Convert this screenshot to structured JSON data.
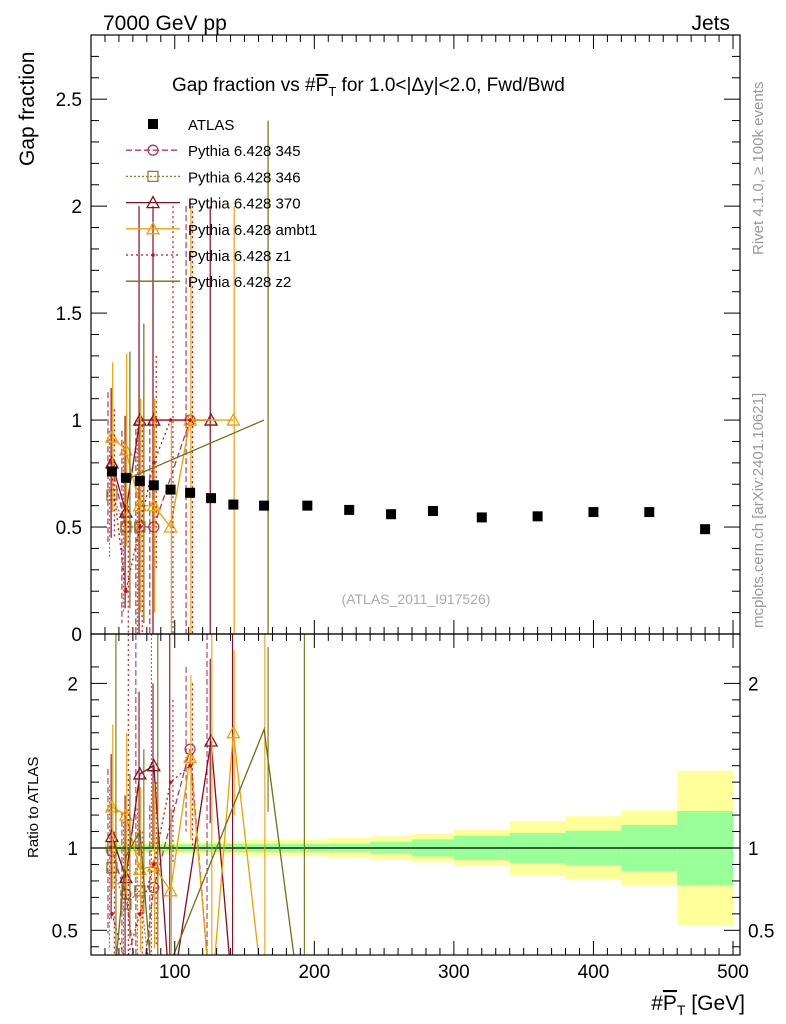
{
  "header": {
    "left": "7000 GeV pp",
    "right": "Jets"
  },
  "side": {
    "rivet": "Rivet 4.1.0, ≥ 100k events",
    "mcplots": "mcplots.cern.ch [arXiv:2401.10621]"
  },
  "chart_data": {
    "type": "scatter",
    "title": "Gap fraction vs #P̅T for 1.0<|Δy|<2.0, Fwd/Bwd",
    "title_parts": {
      "pre": "Gap fraction vs #",
      "p": "P",
      "t": "T",
      "post": " for 1.0<|Δy|<2.0, Fwd/Bwd"
    },
    "xlabel": {
      "pre": "#",
      "p": "P",
      "t": "T",
      "post": " [GeV]"
    },
    "ylabel": "Gap fraction",
    "ratio_ylabel": "Ratio to ATLAS",
    "watermark": "(ATLAS_2011_I917526)",
    "xlim": [
      40,
      505
    ],
    "ylim": [
      0,
      2.8
    ],
    "ratio_ylim": [
      0.35,
      2.3
    ],
    "x_ticks": [
      100,
      200,
      300,
      400,
      500
    ],
    "y_ticks": [
      0,
      0.5,
      1,
      1.5,
      2,
      2.5
    ],
    "ratio_ticks": [
      0.5,
      1,
      2
    ],
    "data": {
      "name": "ATLAS",
      "x": [
        55,
        65,
        75,
        85,
        97,
        111,
        126,
        142,
        164,
        195,
        225,
        255,
        285,
        320,
        360,
        400,
        440,
        480
      ],
      "y": [
        0.76,
        0.73,
        0.715,
        0.695,
        0.675,
        0.66,
        0.635,
        0.605,
        0.6,
        0.6,
        0.58,
        0.56,
        0.575,
        0.545,
        0.55,
        0.57,
        0.57,
        0.49
      ],
      "band_edges": [
        50,
        60,
        70,
        80,
        90,
        105,
        118,
        134,
        150,
        180,
        210,
        240,
        270,
        300,
        340,
        380,
        420,
        460,
        500
      ],
      "stat_half": [
        0.015,
        0.015,
        0.015,
        0.015,
        0.015,
        0.015,
        0.015,
        0.015,
        0.015,
        0.015,
        0.015,
        0.02,
        0.03,
        0.04,
        0.05,
        0.06,
        0.08,
        0.11
      ],
      "tot_half": [
        0.025,
        0.025,
        0.025,
        0.025,
        0.025,
        0.025,
        0.025,
        0.025,
        0.03,
        0.03,
        0.035,
        0.04,
        0.05,
        0.06,
        0.09,
        0.11,
        0.13,
        0.23
      ]
    },
    "series": [
      {
        "name": "Pythia 6.428 345",
        "color": "#b23a5a",
        "dash": "6,3",
        "marker": "circle",
        "x": [
          55,
          65,
          75,
          85,
          111
        ],
        "y": [
          0.78,
          0.5,
          0.5,
          0.5,
          1.0
        ],
        "err": [
          0.35,
          0.45,
          0.5,
          0.5,
          1.0
        ],
        "ratio_x": [
          55,
          65,
          75,
          85,
          111,
          126
        ],
        "ratio_y": [
          0.98,
          0.72,
          0.05,
          0.76,
          1.6,
          0.05
        ]
      },
      {
        "name": "Pythia 6.428 346",
        "color": "#9a7a2a",
        "dash": "2,2",
        "marker": "square",
        "x": [
          55,
          65,
          75
        ],
        "y": [
          0.65,
          0.5,
          0.5
        ],
        "err": [
          0.3,
          0.4,
          0.5
        ],
        "ratio_x": [
          55,
          65,
          75,
          85
        ],
        "ratio_y": [
          0.88,
          0.66,
          0.74,
          0.05
        ]
      },
      {
        "name": "Pythia 6.428 370",
        "color": "#8b0a1e",
        "dash": "",
        "marker": "triangle",
        "x": [
          55,
          65,
          75,
          85,
          126
        ],
        "y": [
          0.8,
          0.57,
          1.0,
          1.0,
          1.0
        ],
        "err": [
          0.35,
          0.45,
          1.0,
          1.0,
          1.0
        ],
        "ratio_x": [
          55,
          65,
          75,
          85,
          97,
          126,
          142
        ],
        "ratio_y": [
          1.07,
          0.82,
          1.45,
          1.5,
          0.05,
          1.65,
          0.05
        ]
      },
      {
        "name": "Pythia 6.428 ambt1",
        "color": "#f0a000",
        "dash": "",
        "marker": "triangle",
        "x": [
          55,
          65,
          75,
          85,
          97,
          111,
          142
        ],
        "y": [
          0.92,
          0.86,
          0.6,
          0.6,
          0.5,
          1.0,
          1.0
        ],
        "err": [
          0.35,
          0.45,
          0.5,
          0.5,
          0.5,
          1.0,
          1.0
        ],
        "ratio_x": [
          55,
          65,
          75,
          85,
          97,
          111,
          126,
          142,
          164
        ],
        "ratio_y": [
          1.25,
          1.2,
          0.87,
          0.89,
          0.74,
          1.55,
          0.05,
          1.7,
          0.05
        ]
      },
      {
        "name": "Pythia 6.428 z1",
        "color": "#cc1010",
        "dash": "2,3",
        "marker": "dot",
        "x": [
          55,
          65,
          75,
          85,
          97,
          111
        ],
        "y": [
          0.75,
          0.2,
          0.5,
          0.8,
          1.0,
          1.0
        ],
        "err": [
          0.3,
          0.4,
          0.5,
          0.5,
          1.0,
          1.0
        ],
        "ratio_x": [
          55,
          65,
          75,
          85,
          97,
          111
        ],
        "ratio_y": [
          0.6,
          0.3,
          0.6,
          0.9,
          1.4,
          1.5
        ]
      },
      {
        "name": "Pythia 6.428 z2",
        "color": "#707010",
        "dash": "",
        "marker": "none",
        "x": [
          65,
          75,
          164
        ],
        "y": [
          0.72,
          0.75,
          1.0
        ],
        "err": [
          0.6,
          0.7,
          1.4
        ],
        "ratio_x": [
          55,
          65,
          75,
          85,
          164,
          190
        ],
        "ratio_y": [
          0.05,
          0.95,
          1.1,
          0.05,
          1.72,
          0.05
        ]
      }
    ]
  }
}
